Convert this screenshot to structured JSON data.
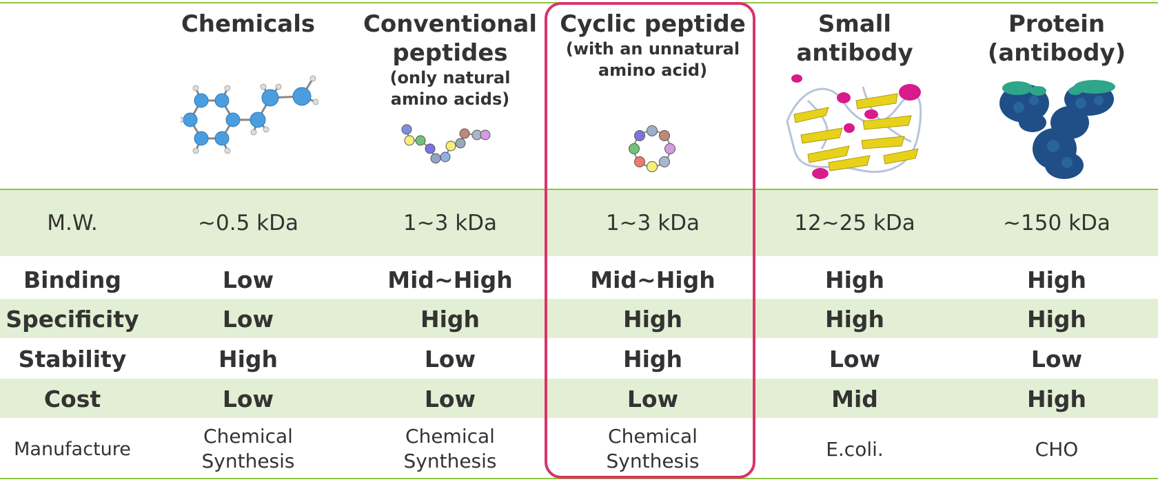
{
  "columns": [
    {
      "title": "Chemicals",
      "subtitle": ""
    },
    {
      "title": "Conventional peptides",
      "subtitle": "(only natural amino acids)"
    },
    {
      "title": "Cyclic peptide",
      "subtitle": "(with an unnatural amino acid)"
    },
    {
      "title": "Small antibody",
      "subtitle": ""
    },
    {
      "title": "Protein (antibody)",
      "subtitle": ""
    }
  ],
  "rows": [
    {
      "label": "M.W.",
      "values": [
        "~0.5 kDa",
        "1~3 kDa",
        "1~3 kDa",
        "12~25 kDa",
        "~150 kDa"
      ]
    },
    {
      "label": "Binding",
      "values": [
        "Low",
        "Mid~High",
        "Mid~High",
        "High",
        "High"
      ]
    },
    {
      "label": "Specificity",
      "values": [
        "Low",
        "High",
        "High",
        "High",
        "High"
      ]
    },
    {
      "label": "Stability",
      "values": [
        "High",
        "Low",
        "High",
        "Low",
        "Low"
      ]
    },
    {
      "label": "Cost",
      "values": [
        "Low",
        "Low",
        "Low",
        "Mid",
        "High"
      ]
    },
    {
      "label": "Manufacture",
      "values": [
        "Chemical Synthesis",
        "Chemical Synthesis",
        "Chemical Synthesis",
        "E.coli.",
        "CHO"
      ]
    }
  ],
  "colors": {
    "accent_line": "#8dc63f",
    "band": "#e3efd4",
    "highlight_border": "#d9346c",
    "text": "#333333"
  },
  "icons": [
    "benzene-molecule-icon",
    "linear-peptide-chain-icon",
    "cyclic-peptide-ring-icon",
    "small-antibody-ribbon-icon",
    "antibody-protein-icon"
  ]
}
